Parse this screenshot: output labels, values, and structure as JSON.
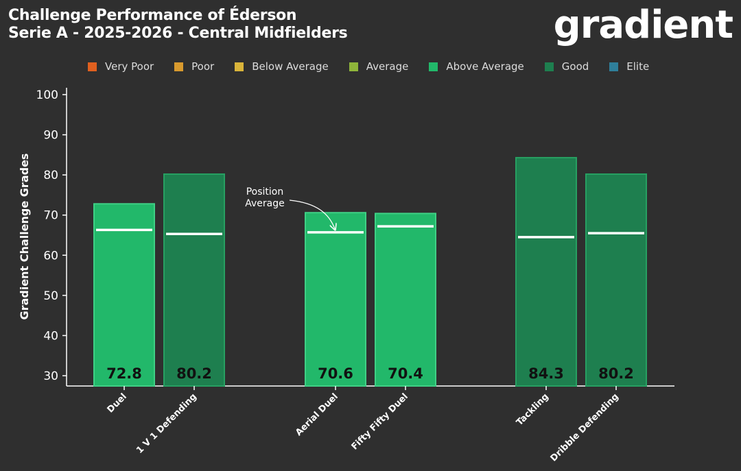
{
  "header": {
    "title_line1": "Challenge Performance of Éderson",
    "title_line2": "Serie A - 2025-2026 - Central Midfielders",
    "brand": "gradient"
  },
  "legend": [
    {
      "label": "Very Poor",
      "color": "#e0601f"
    },
    {
      "label": "Poor",
      "color": "#d89a2e"
    },
    {
      "label": "Below Average",
      "color": "#d9b43a"
    },
    {
      "label": "Average",
      "color": "#8fb53a"
    },
    {
      "label": "Above Average",
      "color": "#22b86a"
    },
    {
      "label": "Good",
      "color": "#1e7f4f"
    },
    {
      "label": "Elite",
      "color": "#2f7f9a"
    }
  ],
  "annotation": {
    "line1": "Position",
    "line2": "Average"
  },
  "chart_data": {
    "type": "bar",
    "ylabel": "Gradient Challenge Grades",
    "ylim": [
      30,
      100
    ],
    "yticks": [
      30,
      40,
      50,
      60,
      70,
      80,
      90,
      100
    ],
    "categories": [
      "Duel",
      "1 V 1 Defending",
      "Aerial Duel",
      "Fifty Fifty Duel",
      "Tackling",
      "Dribble Defending"
    ],
    "values": [
      72.8,
      80.2,
      70.6,
      70.4,
      84.3,
      80.2
    ],
    "value_labels": [
      "72.8",
      "80.2",
      "70.6",
      "70.4",
      "84.3",
      "80.2"
    ],
    "position_average": [
      66.3,
      65.3,
      65.7,
      67.2,
      64.5,
      65.5
    ],
    "grade": [
      "Above Average",
      "Good",
      "Above Average",
      "Above Average",
      "Good",
      "Good"
    ],
    "colors": {
      "Above Average": "#22b86a",
      "Good": "#1e7f4f"
    }
  }
}
